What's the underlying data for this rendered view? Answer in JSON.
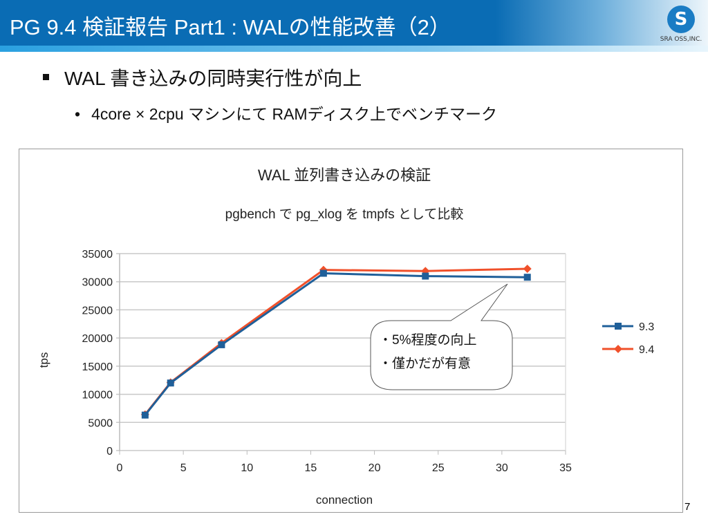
{
  "header": {
    "title": "PG 9.4 検証報告 Part1 : WALの性能改善（2）",
    "logo_text": "SRA OSS,INC."
  },
  "bullets": {
    "level1": "WAL 書き込みの同時実行性が向上",
    "level2": "4core × 2cpu マシンにて RAMディスク上でベンチマーク"
  },
  "callout": {
    "line1": "・5%程度の向上",
    "line2": "・僅かだが有意"
  },
  "page_number": "7",
  "colors": {
    "header": "#0a6cb4",
    "series_9_3": "#1f5f99",
    "series_9_4": "#f0502a"
  },
  "chart_data": {
    "type": "line",
    "title": "WAL 並列書き込みの検証",
    "subtitle": "pgbench で pg_xlog を tmpfs として比較",
    "xlabel": "connection",
    "ylabel": "tps",
    "xlim": [
      0,
      35
    ],
    "ylim": [
      0,
      35000
    ],
    "xticks": [
      "0",
      "5",
      "10",
      "15",
      "20",
      "25",
      "30",
      "35"
    ],
    "yticks": [
      "0",
      "5000",
      "10000",
      "15000",
      "20000",
      "25000",
      "30000",
      "35000"
    ],
    "grid": true,
    "legend_position": "right",
    "x": [
      2,
      4,
      8,
      16,
      24,
      32
    ],
    "series": [
      {
        "name": "9.3",
        "marker": "square",
        "values": [
          6300,
          12000,
          18800,
          31500,
          31000,
          30800
        ]
      },
      {
        "name": "9.4",
        "marker": "diamond",
        "values": [
          6400,
          12100,
          19100,
          32100,
          31900,
          32300
        ]
      }
    ]
  }
}
